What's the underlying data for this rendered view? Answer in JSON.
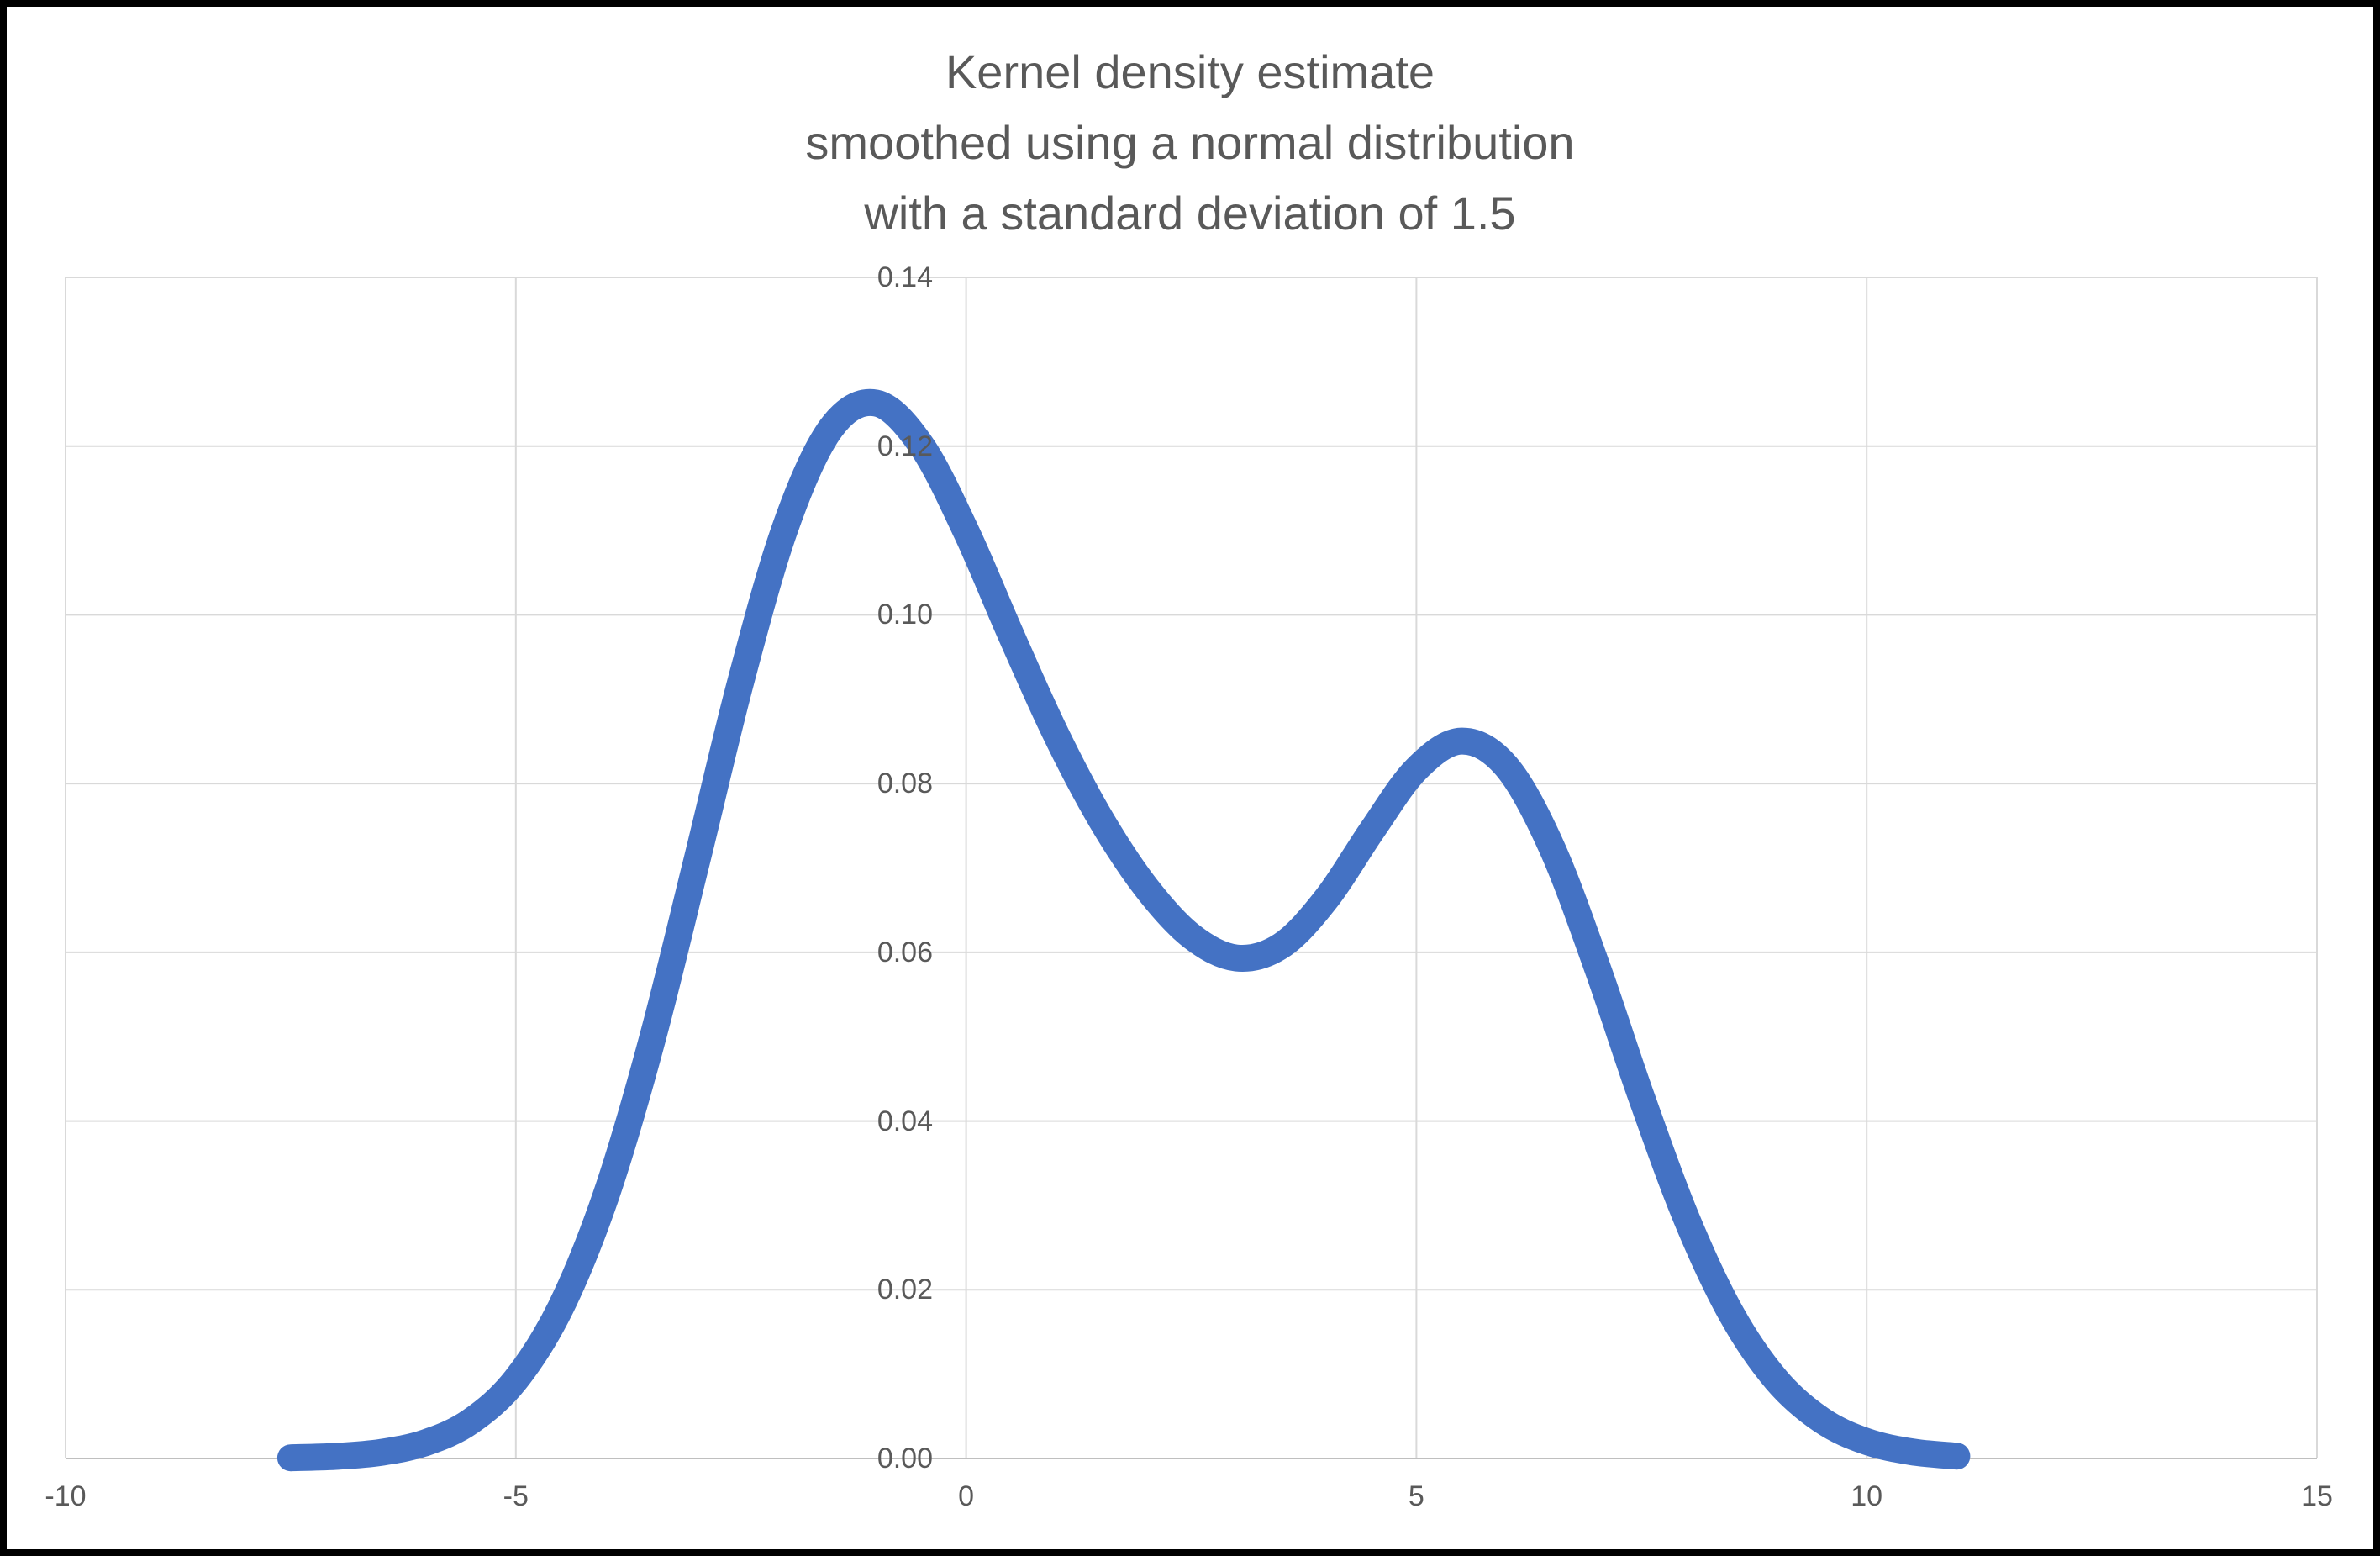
{
  "chart_data": {
    "type": "line",
    "title_lines": [
      "Kernel density estimate",
      "smoothed using a normal distribution",
      "with a standard deviation of 1.5"
    ],
    "title": "Kernel density estimate smoothed using a normal distribution with a standard deviation of 1.5",
    "xlabel": "",
    "ylabel": "",
    "xlim": [
      -10,
      15
    ],
    "ylim": [
      0,
      0.14
    ],
    "grid": true,
    "legend": false,
    "x_axis": {
      "tick_values": [
        -10,
        -5,
        0,
        5,
        10,
        15
      ],
      "tick_labels": [
        "-10",
        "-5",
        "0",
        "5",
        "10",
        "15"
      ]
    },
    "y_axis": {
      "tick_values": [
        0,
        0.02,
        0.04,
        0.06,
        0.08,
        0.1,
        0.12,
        0.14
      ],
      "tick_labels": [
        "0.00",
        "0.02",
        "0.04",
        "0.06",
        "0.08",
        "0.10",
        "0.12",
        "0.14"
      ]
    },
    "series": [
      {
        "name": "kernel-density-estimate",
        "color": "#4472C4",
        "points": [
          [
            -7.5,
            8e-05
          ],
          [
            -7.0,
            0.00025
          ],
          [
            -6.5,
            0.00072
          ],
          [
            -6.0,
            0.00188
          ],
          [
            -5.5,
            0.00441
          ],
          [
            -5.0,
            0.00935
          ],
          [
            -4.5,
            0.01794
          ],
          [
            -4.0,
            0.03114
          ],
          [
            -3.5,
            0.04909
          ],
          [
            -3.0,
            0.07043
          ],
          [
            -2.5,
            0.0922
          ],
          [
            -2.0,
            0.1106
          ],
          [
            -1.5,
            0.12213
          ],
          [
            -1.0,
            0.1251
          ],
          [
            -0.5,
            0.12014
          ],
          [
            0.0,
            0.10989
          ],
          [
            0.5,
            0.09758
          ],
          [
            1.0,
            0.08579
          ],
          [
            1.5,
            0.07572
          ],
          [
            2.0,
            0.06767
          ],
          [
            2.5,
            0.06193
          ],
          [
            3.0,
            0.05933
          ],
          [
            3.5,
            0.06079
          ],
          [
            4.0,
            0.06633
          ],
          [
            4.5,
            0.07434
          ],
          [
            5.0,
            0.08172
          ],
          [
            5.5,
            0.08504
          ],
          [
            6.0,
            0.08202
          ],
          [
            6.5,
            0.07252
          ],
          [
            7.0,
            0.05846
          ],
          [
            7.5,
            0.04281
          ],
          [
            8.0,
            0.02843
          ],
          [
            8.5,
            0.01708
          ],
          [
            9.0,
            0.00928
          ],
          [
            9.5,
            0.00454
          ],
          [
            10.0,
            0.002
          ],
          [
            10.5,
            0.00079
          ],
          [
            11.0,
            0.00028
          ]
        ]
      }
    ],
    "colors": {
      "line": "#4472C4",
      "gridline": "#D9D9D9",
      "axis_line": "#BFBFBF",
      "text": "#595959",
      "background": "#FFFFFF",
      "frame": "#000000"
    }
  }
}
